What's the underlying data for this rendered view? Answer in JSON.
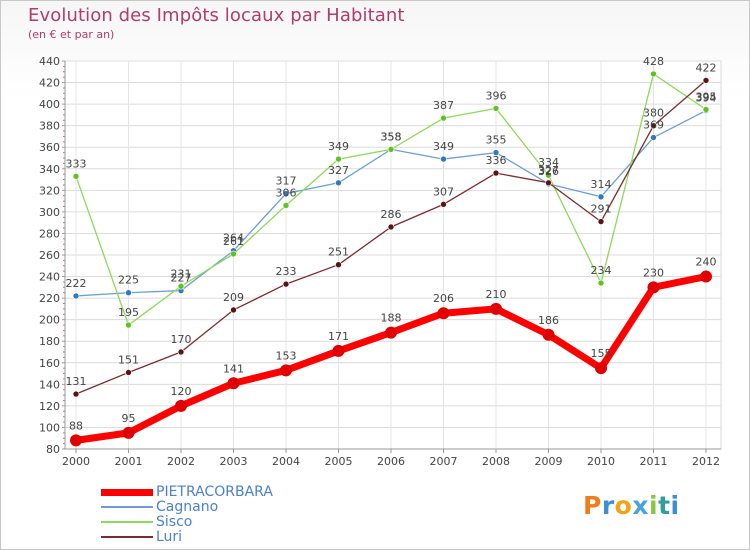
{
  "title": "Evolution des Impôts locaux par Habitant",
  "subtitle": "(en € et par an)",
  "logo": {
    "letters": [
      "P",
      "r",
      "o",
      "x",
      "i",
      "t",
      "i"
    ],
    "colors": [
      "#f07d1a",
      "#3b8fd6",
      "#f2a316",
      "#4aa3df",
      "#8cc63e",
      "#2f9e9e",
      "#3b8fd6"
    ]
  },
  "chart_data": {
    "type": "line",
    "title": "Evolution des Impôts locaux par Habitant",
    "ylabel": "(en € et par an)",
    "xlabel": "",
    "x": [
      "2000",
      "2001",
      "2002",
      "2003",
      "2004",
      "2005",
      "2006",
      "2007",
      "2008",
      "2009",
      "2010",
      "2011",
      "2012"
    ],
    "ylim": [
      80,
      440
    ],
    "yticks": [
      80,
      100,
      120,
      140,
      160,
      180,
      200,
      220,
      240,
      260,
      280,
      300,
      320,
      340,
      360,
      380,
      400,
      420,
      440
    ],
    "grid": true,
    "legend_position": "bottom-left",
    "series": [
      {
        "name": "PIETRACORBARA",
        "color": "#ff0000",
        "dot": "#e00000",
        "width": 7,
        "values": [
          88,
          95,
          120,
          141,
          153,
          171,
          188,
          206,
          210,
          186,
          155,
          230,
          240
        ],
        "labels": [
          "88",
          "95",
          "120",
          "141",
          "153",
          "171",
          "188",
          "206",
          "210",
          "186",
          "155",
          "230",
          "240"
        ]
      },
      {
        "name": "Cagnano",
        "color": "#6b9fd4",
        "dot": "#2f78c4",
        "width": 1.3,
        "values": [
          222,
          225,
          227,
          264,
          317,
          327,
          358,
          349,
          355,
          326,
          314,
          369,
          394
        ],
        "labels": [
          "222",
          "225",
          "227",
          "264",
          "317",
          "327",
          "358",
          "349",
          "355",
          "326",
          "314",
          "369",
          "394"
        ]
      },
      {
        "name": "Sisco",
        "color": "#8ed85a",
        "dot": "#5fc21e",
        "width": 1.3,
        "values": [
          333,
          195,
          231,
          261,
          306,
          349,
          358,
          387,
          396,
          334,
          234,
          428,
          395
        ],
        "labels": [
          "333",
          "195",
          "231",
          "261",
          "306",
          "349",
          "358",
          "387",
          "396",
          "334",
          "234",
          "428",
          "395"
        ]
      },
      {
        "name": "Luri",
        "color": "#7b2c2c",
        "dot": "#5a1414",
        "width": 1.3,
        "values": [
          131,
          151,
          170,
          209,
          233,
          251,
          286,
          307,
          336,
          327,
          291,
          380,
          422
        ],
        "labels": [
          "131",
          "151",
          "170",
          "209",
          "233",
          "251",
          "286",
          "307",
          "336",
          "327",
          "291",
          "380",
          "422"
        ]
      }
    ]
  }
}
